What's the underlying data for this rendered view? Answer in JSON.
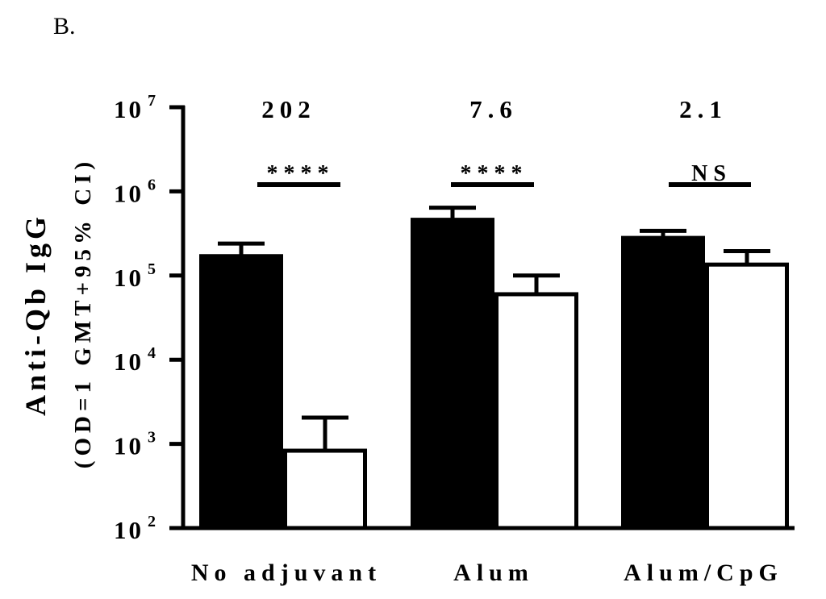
{
  "panel_label": "B.",
  "chart_data": {
    "type": "bar",
    "ylabel": "Anti-Qb IgG",
    "ylabel_sub": "(OD=1 GMT+95% CI)",
    "yscale": "log",
    "ylim": [
      100,
      10000000
    ],
    "yticks": [
      {
        "base": "10",
        "exp": "2",
        "value": 100
      },
      {
        "base": "10",
        "exp": "3",
        "value": 1000
      },
      {
        "base": "10",
        "exp": "4",
        "value": 10000
      },
      {
        "base": "10",
        "exp": "5",
        "value": 100000
      },
      {
        "base": "10",
        "exp": "6",
        "value": 1000000
      },
      {
        "base": "10",
        "exp": "7",
        "value": 10000000
      }
    ],
    "categories": [
      "No adjuvant",
      "Alum",
      "Alum/CpG"
    ],
    "series": [
      {
        "fill": "#000000",
        "values": [
          170000,
          460000,
          280000
        ],
        "ci_upper": [
          240000,
          640000,
          340000
        ]
      },
      {
        "fill": "#ffffff",
        "values": [
          830,
          60000,
          135000
        ],
        "ci_upper": [
          2050,
          100000,
          195000
        ]
      }
    ],
    "group_annotations": [
      "202",
      "7.6",
      "2.1"
    ],
    "significance": [
      "****",
      "****",
      "NS"
    ],
    "grid": false,
    "legend": "none"
  }
}
